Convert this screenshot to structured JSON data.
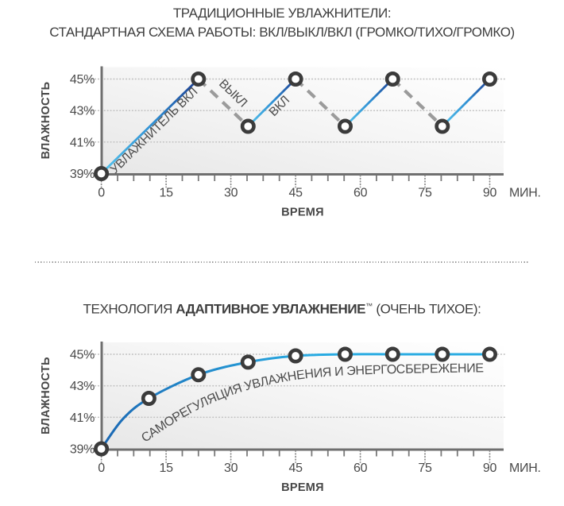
{
  "header": {
    "line1": "ТРАДИЦИОННЫЕ УВЛАЖНИТЕЛИ:",
    "line2": "СТАНДАРТНАЯ СХЕМА РАБОТЫ: ВКЛ/ВЫКЛ/ВКЛ (ГРОМКО/ТИХО/ГРОМКО)"
  },
  "section2_header": {
    "prefix": "ТЕХНОЛОГИЯ ",
    "brand": "АДАПТИВНОЕ УВЛАЖНЕНИЕ",
    "tm": "™",
    "suffix": " (ОЧЕНЬ ТИХОЕ):"
  },
  "colors": {
    "line_gradient_start": "#54c3ec",
    "line_gradient_mid": "#2f8ed2",
    "line_gradient_end": "#1c3c90",
    "curve_gradient_start": "#1a66b2",
    "curve_gradient_end": "#29abe2",
    "dashed_gray": "#9b9b9b",
    "marker_ring": "#3b3b3b",
    "axis_gray": "#6f6f6f",
    "label_gray": "#4a4a4a"
  },
  "chart_data": [
    {
      "type": "line",
      "title": "ТРАДИЦИОННЫЕ УВЛАЖНИТЕЛИ: СТАНДАРТНАЯ СХЕМА РАБОТЫ: ВКЛ/ВЫКЛ/ВКЛ (ГРОМКО/ТИХО/ГРОМКО)",
      "xlabel": "ВРЕМЯ",
      "ylabel": "ВЛАЖНОСТЬ",
      "x_unit": "МИН.",
      "xlim": [
        0,
        93
      ],
      "ylim": [
        39,
        45.5
      ],
      "x_ticks": [
        0,
        15,
        30,
        45,
        60,
        75,
        90
      ],
      "x_minor_step": 3.75,
      "y_ticks": [
        45,
        43,
        41,
        39
      ],
      "y_tick_labels": [
        "45%",
        "43%",
        "41%",
        "39%"
      ],
      "grid": "dotted-horizontal",
      "legend": "none",
      "series": [
        {
          "phase": "on",
          "style": "gradient",
          "points": [
            [
              0,
              39
            ],
            [
              22.5,
              45
            ]
          ]
        },
        {
          "phase": "off",
          "style": "dashed",
          "points": [
            [
              22.5,
              45
            ],
            [
              34,
              42
            ]
          ]
        },
        {
          "phase": "on",
          "style": "gradient",
          "points": [
            [
              34,
              42
            ],
            [
              45,
              45
            ]
          ]
        },
        {
          "phase": "off",
          "style": "dashed",
          "points": [
            [
              45,
              45
            ],
            [
              56.5,
              42
            ]
          ]
        },
        {
          "phase": "on",
          "style": "gradient",
          "points": [
            [
              56.5,
              42
            ],
            [
              67.5,
              45
            ]
          ]
        },
        {
          "phase": "off",
          "style": "dashed",
          "points": [
            [
              67.5,
              45
            ],
            [
              79,
              42
            ]
          ]
        },
        {
          "phase": "on",
          "style": "gradient",
          "points": [
            [
              79,
              42
            ],
            [
              90,
              45
            ]
          ]
        }
      ],
      "markers": [
        [
          0,
          39
        ],
        [
          22.5,
          45
        ],
        [
          34,
          42
        ],
        [
          45,
          45
        ],
        [
          56.5,
          42
        ],
        [
          67.5,
          45
        ],
        [
          79,
          42
        ],
        [
          90,
          45
        ]
      ],
      "annotations": [
        {
          "text": "УВЛАЖНИТЕЛЬ ВКЛ",
          "t": 12.8,
          "h": 41.55,
          "angle": -44.5
        },
        {
          "text": "ВЫКЛ",
          "t": 29.9,
          "h": 43.92,
          "angle": 44
        },
        {
          "text": "ВКЛ",
          "t": 41.85,
          "h": 43.11,
          "angle": -45
        }
      ]
    },
    {
      "type": "line",
      "title": "ТЕХНОЛОГИЯ АДАПТИВНОЕ УВЛАЖНЕНИЕ™ (ОЧЕНЬ ТИХОЕ):",
      "xlabel": "ВРЕМЯ",
      "ylabel": "ВЛАЖНОСТЬ",
      "x_unit": "МИН.",
      "xlim": [
        0,
        93
      ],
      "ylim": [
        39,
        45.5
      ],
      "x_ticks": [
        0,
        15,
        30,
        45,
        60,
        75,
        90
      ],
      "x_minor_step": 3.75,
      "y_ticks": [
        45,
        43,
        41,
        39
      ],
      "y_tick_labels": [
        "45%",
        "43%",
        "41%",
        "39%"
      ],
      "grid": "dotted-horizontal",
      "legend": "none",
      "curve_label": "САМОРЕГУЛЯЦИЯ УВЛАЖНЕНИЯ И ЭНЕРГОСБЕРЕЖЕНИЕ",
      "series": [
        {
          "phase": "adaptive",
          "style": "smooth",
          "points": [
            [
              0,
              39
            ],
            [
              5,
              40.9
            ],
            [
              11,
              42.2
            ],
            [
              22.5,
              43.7
            ],
            [
              34,
              44.5
            ],
            [
              45,
              44.9
            ],
            [
              56.5,
              45
            ],
            [
              67.5,
              45
            ],
            [
              79,
              45
            ],
            [
              90,
              45
            ]
          ]
        }
      ],
      "markers": [
        [
          0,
          39
        ],
        [
          11,
          42.2
        ],
        [
          22.5,
          43.7
        ],
        [
          34,
          44.5
        ],
        [
          45,
          44.9
        ],
        [
          56.5,
          45
        ],
        [
          67.5,
          45
        ],
        [
          79,
          45
        ],
        [
          90,
          45
        ]
      ]
    }
  ]
}
